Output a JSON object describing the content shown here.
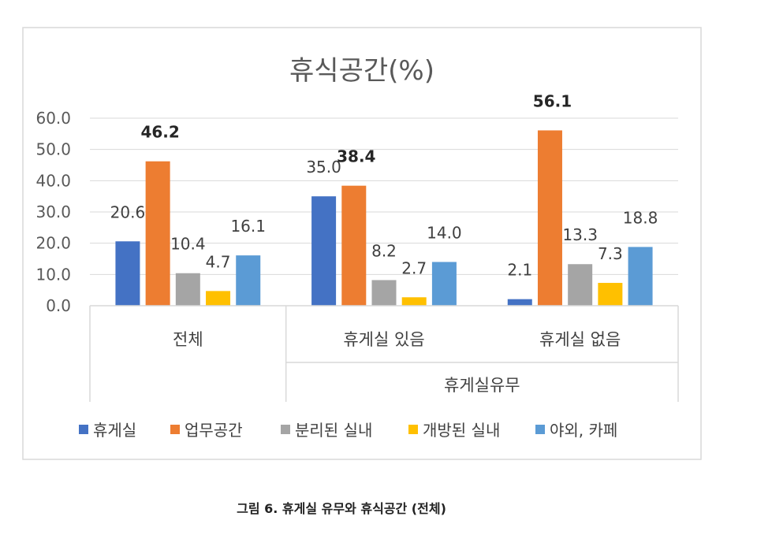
{
  "chart_data": {
    "type": "bar",
    "title": "휴식공간(%)",
    "ylim": [
      0,
      60
    ],
    "yticks": [
      "60.0",
      "50.0",
      "40.0",
      "30.0",
      "20.0",
      "10.0",
      "0.0"
    ],
    "grid": true,
    "legend_position": "bottom",
    "group_label": "휴게실유무",
    "categories": [
      "전체",
      "휴게실 있음",
      "휴게실 없음"
    ],
    "series": [
      {
        "name": "휴게실",
        "color": "#4472C4",
        "values": [
          20.6,
          35.0,
          2.1
        ]
      },
      {
        "name": "업무공간",
        "color": "#ED7D31",
        "values": [
          46.2,
          38.4,
          56.1
        ],
        "bold_labels": true
      },
      {
        "name": "분리된 실내",
        "color": "#A5A5A5",
        "values": [
          10.4,
          8.2,
          13.3
        ]
      },
      {
        "name": "개방된 실내",
        "color": "#FFC000",
        "values": [
          4.7,
          2.7,
          7.3
        ]
      },
      {
        "name": "야외, 카페",
        "color": "#5B9BD5",
        "values": [
          16.1,
          14.0,
          18.8
        ]
      }
    ]
  },
  "caption": "그림 6. 휴게실 유무와 휴식공간 (전체)"
}
